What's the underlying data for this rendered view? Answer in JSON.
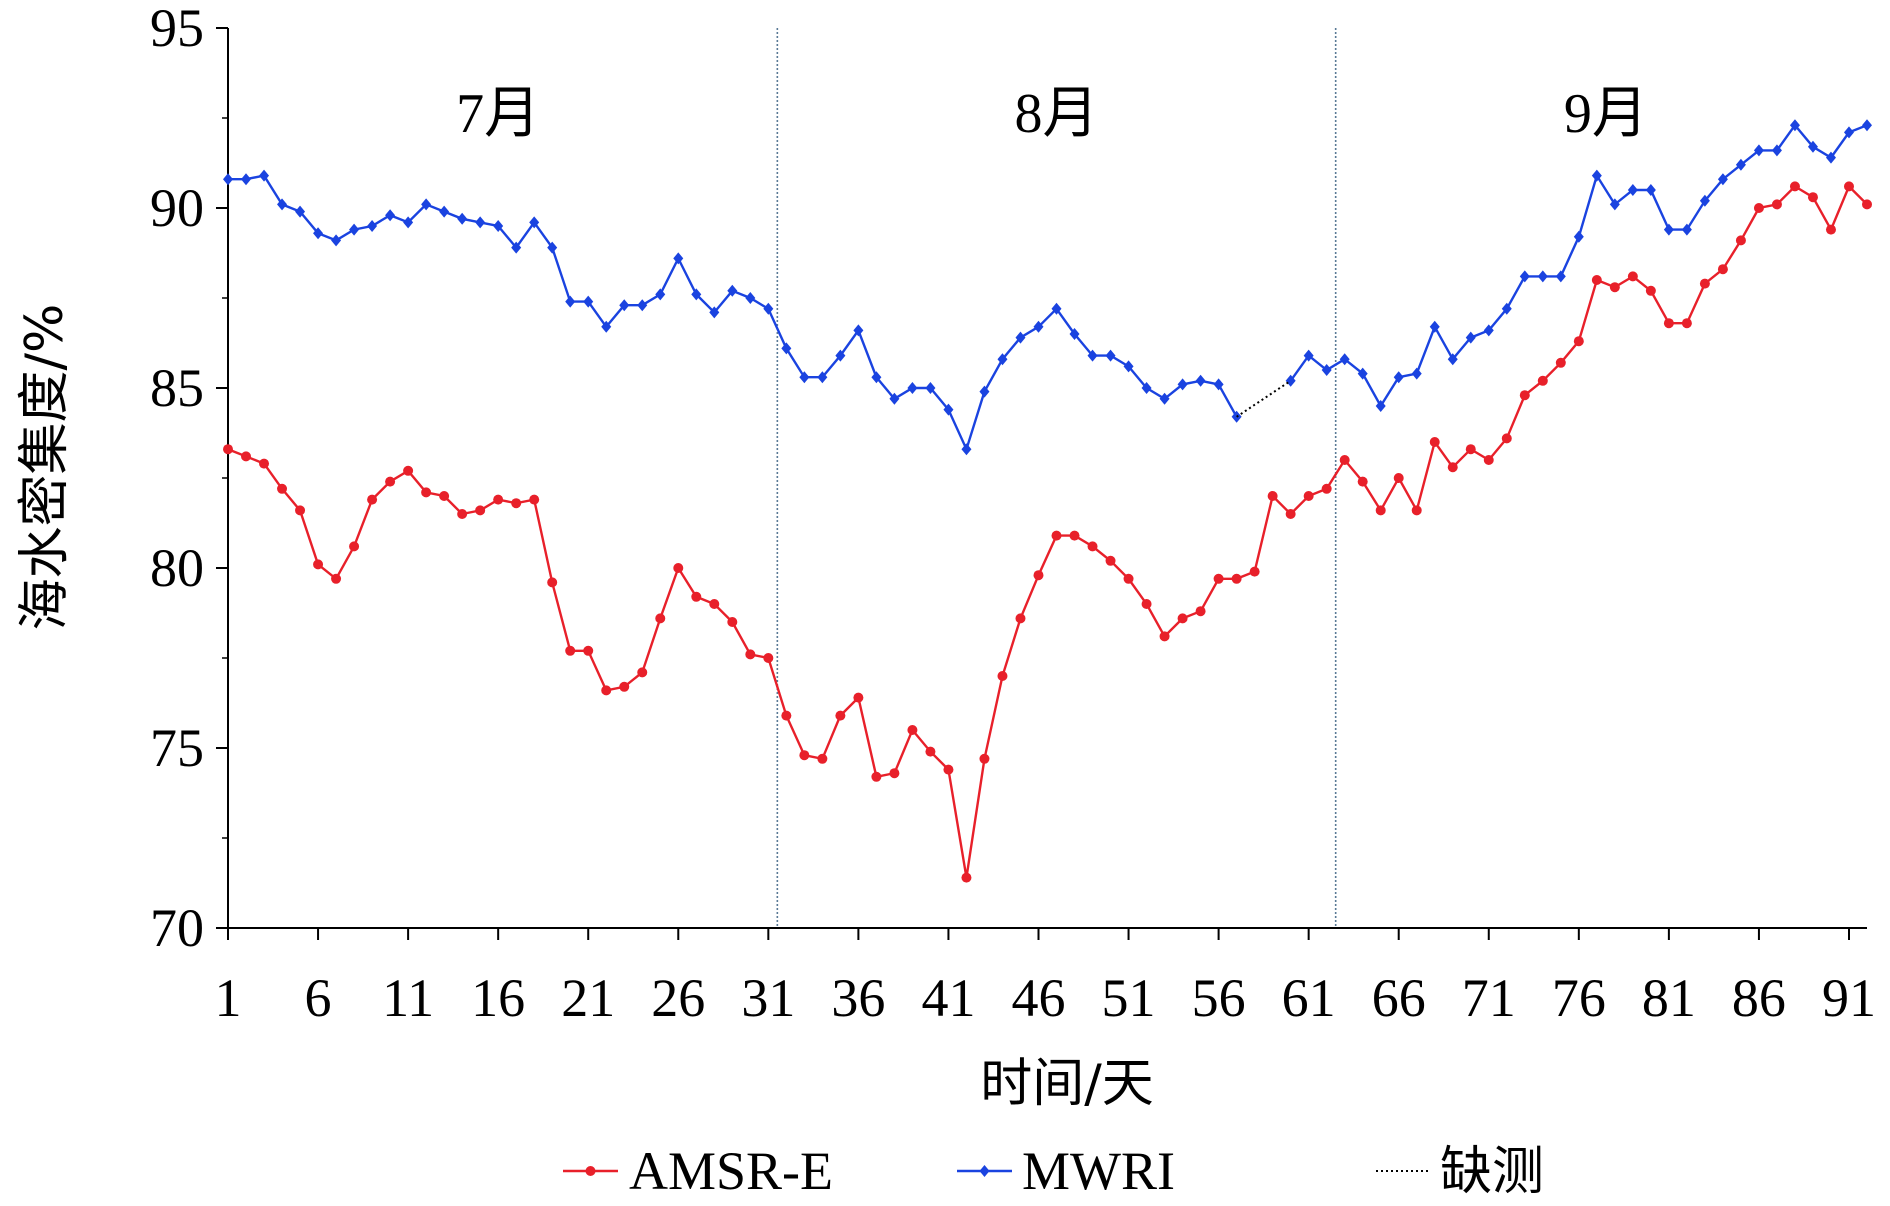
{
  "chart_data": {
    "type": "line",
    "xlabel": "时间/天",
    "ylabel": "海水密集度/%",
    "xlim": [
      1,
      92
    ],
    "ylim": [
      70,
      95
    ],
    "xticks": [
      1,
      6,
      11,
      16,
      21,
      26,
      31,
      36,
      41,
      46,
      51,
      56,
      61,
      66,
      71,
      76,
      81,
      86,
      91
    ],
    "yticks": [
      70,
      75,
      80,
      85,
      90,
      95
    ],
    "month_dividers": [
      31.5,
      62.5
    ],
    "month_labels": [
      {
        "text": "7月",
        "x": 16
      },
      {
        "text": "8月",
        "x": 47
      },
      {
        "text": "9月",
        "x": 77.5
      }
    ],
    "legend_position": "bottom",
    "series": [
      {
        "name": "AMSR-E",
        "color": "#e8202a",
        "marker": "circle",
        "x": [
          1,
          2,
          3,
          4,
          5,
          6,
          7,
          8,
          9,
          10,
          11,
          12,
          13,
          14,
          15,
          16,
          17,
          18,
          19,
          20,
          21,
          22,
          23,
          24,
          25,
          26,
          27,
          28,
          29,
          30,
          31,
          32,
          33,
          34,
          35,
          36,
          37,
          38,
          39,
          40,
          41,
          42,
          43,
          44,
          45,
          46,
          47,
          48,
          49,
          50,
          51,
          52,
          53,
          54,
          55,
          56,
          57,
          58,
          59,
          60,
          61,
          62,
          63,
          64,
          65,
          66,
          67,
          68,
          69,
          70,
          71,
          72,
          73,
          74,
          75,
          76,
          77,
          78,
          79,
          80,
          81,
          82,
          83,
          84,
          85,
          86,
          87,
          88,
          89,
          90,
          91,
          92
        ],
        "values": [
          83.3,
          83.1,
          82.9,
          82.2,
          81.6,
          80.1,
          79.7,
          80.6,
          81.9,
          82.4,
          82.7,
          82.1,
          82.0,
          81.5,
          81.6,
          81.9,
          81.8,
          81.9,
          79.6,
          77.7,
          77.7,
          76.6,
          76.7,
          77.1,
          78.6,
          80.0,
          79.2,
          79.0,
          78.5,
          77.6,
          77.5,
          75.9,
          74.8,
          74.7,
          75.9,
          76.4,
          74.2,
          74.3,
          75.5,
          74.9,
          74.4,
          71.4,
          74.7,
          77.0,
          78.6,
          79.8,
          80.9,
          80.9,
          80.6,
          80.2,
          79.7,
          79.0,
          78.1,
          78.6,
          78.8,
          79.7,
          79.7,
          79.9,
          82.0,
          81.5,
          82.0,
          82.2,
          83.0,
          82.4,
          81.6,
          82.5,
          81.6,
          83.5,
          82.8,
          83.3,
          83.0,
          83.6,
          84.8,
          85.2,
          85.7,
          86.3,
          88.0,
          87.8,
          88.1,
          87.7,
          86.8,
          86.8,
          87.9,
          88.3,
          89.1,
          90.0,
          90.1,
          90.6,
          90.3,
          89.4,
          90.6,
          90.1
        ]
      },
      {
        "name": "MWRI",
        "color": "#1a43e0",
        "marker": "diamond",
        "x": [
          1,
          2,
          3,
          4,
          5,
          6,
          7,
          8,
          9,
          10,
          11,
          12,
          13,
          14,
          15,
          16,
          17,
          18,
          19,
          20,
          21,
          22,
          23,
          24,
          25,
          26,
          27,
          28,
          29,
          30,
          31,
          32,
          33,
          34,
          35,
          36,
          37,
          38,
          39,
          40,
          41,
          42,
          43,
          44,
          45,
          46,
          47,
          48,
          49,
          50,
          51,
          52,
          53,
          54,
          55,
          56,
          57,
          60,
          61,
          62,
          63,
          64,
          65,
          66,
          67,
          68,
          69,
          70,
          71,
          72,
          73,
          74,
          75,
          76,
          77,
          78,
          79,
          80,
          81,
          82,
          83,
          84,
          85,
          86,
          87,
          88,
          89,
          90,
          91,
          92
        ],
        "values": [
          90.8,
          90.8,
          90.9,
          90.1,
          89.9,
          89.3,
          89.1,
          89.4,
          89.5,
          89.8,
          89.6,
          90.1,
          89.9,
          89.7,
          89.6,
          89.5,
          88.9,
          89.6,
          88.9,
          87.4,
          87.4,
          86.7,
          87.3,
          87.3,
          87.6,
          88.6,
          87.6,
          87.1,
          87.7,
          87.5,
          87.2,
          86.1,
          85.3,
          85.3,
          85.9,
          86.6,
          85.3,
          84.7,
          85.0,
          85.0,
          84.4,
          83.3,
          84.9,
          85.8,
          86.4,
          86.7,
          87.2,
          86.5,
          85.9,
          85.9,
          85.6,
          85.0,
          84.7,
          85.1,
          85.2,
          85.1,
          84.2,
          85.2,
          85.9,
          85.5,
          85.8,
          85.4,
          84.5,
          85.3,
          85.4,
          86.7,
          85.8,
          86.4,
          86.6,
          87.2,
          88.1,
          88.1,
          88.1,
          89.2,
          90.9,
          90.1,
          90.5,
          90.5,
          89.4,
          89.4,
          90.2,
          90.8,
          91.2,
          91.6,
          91.6,
          92.3,
          91.7,
          91.4,
          92.1,
          92.3
        ]
      },
      {
        "name": "缺测",
        "color": "#000000",
        "style": "dotted",
        "x": [
          57,
          60
        ],
        "values": [
          84.2,
          85.2
        ]
      }
    ]
  }
}
